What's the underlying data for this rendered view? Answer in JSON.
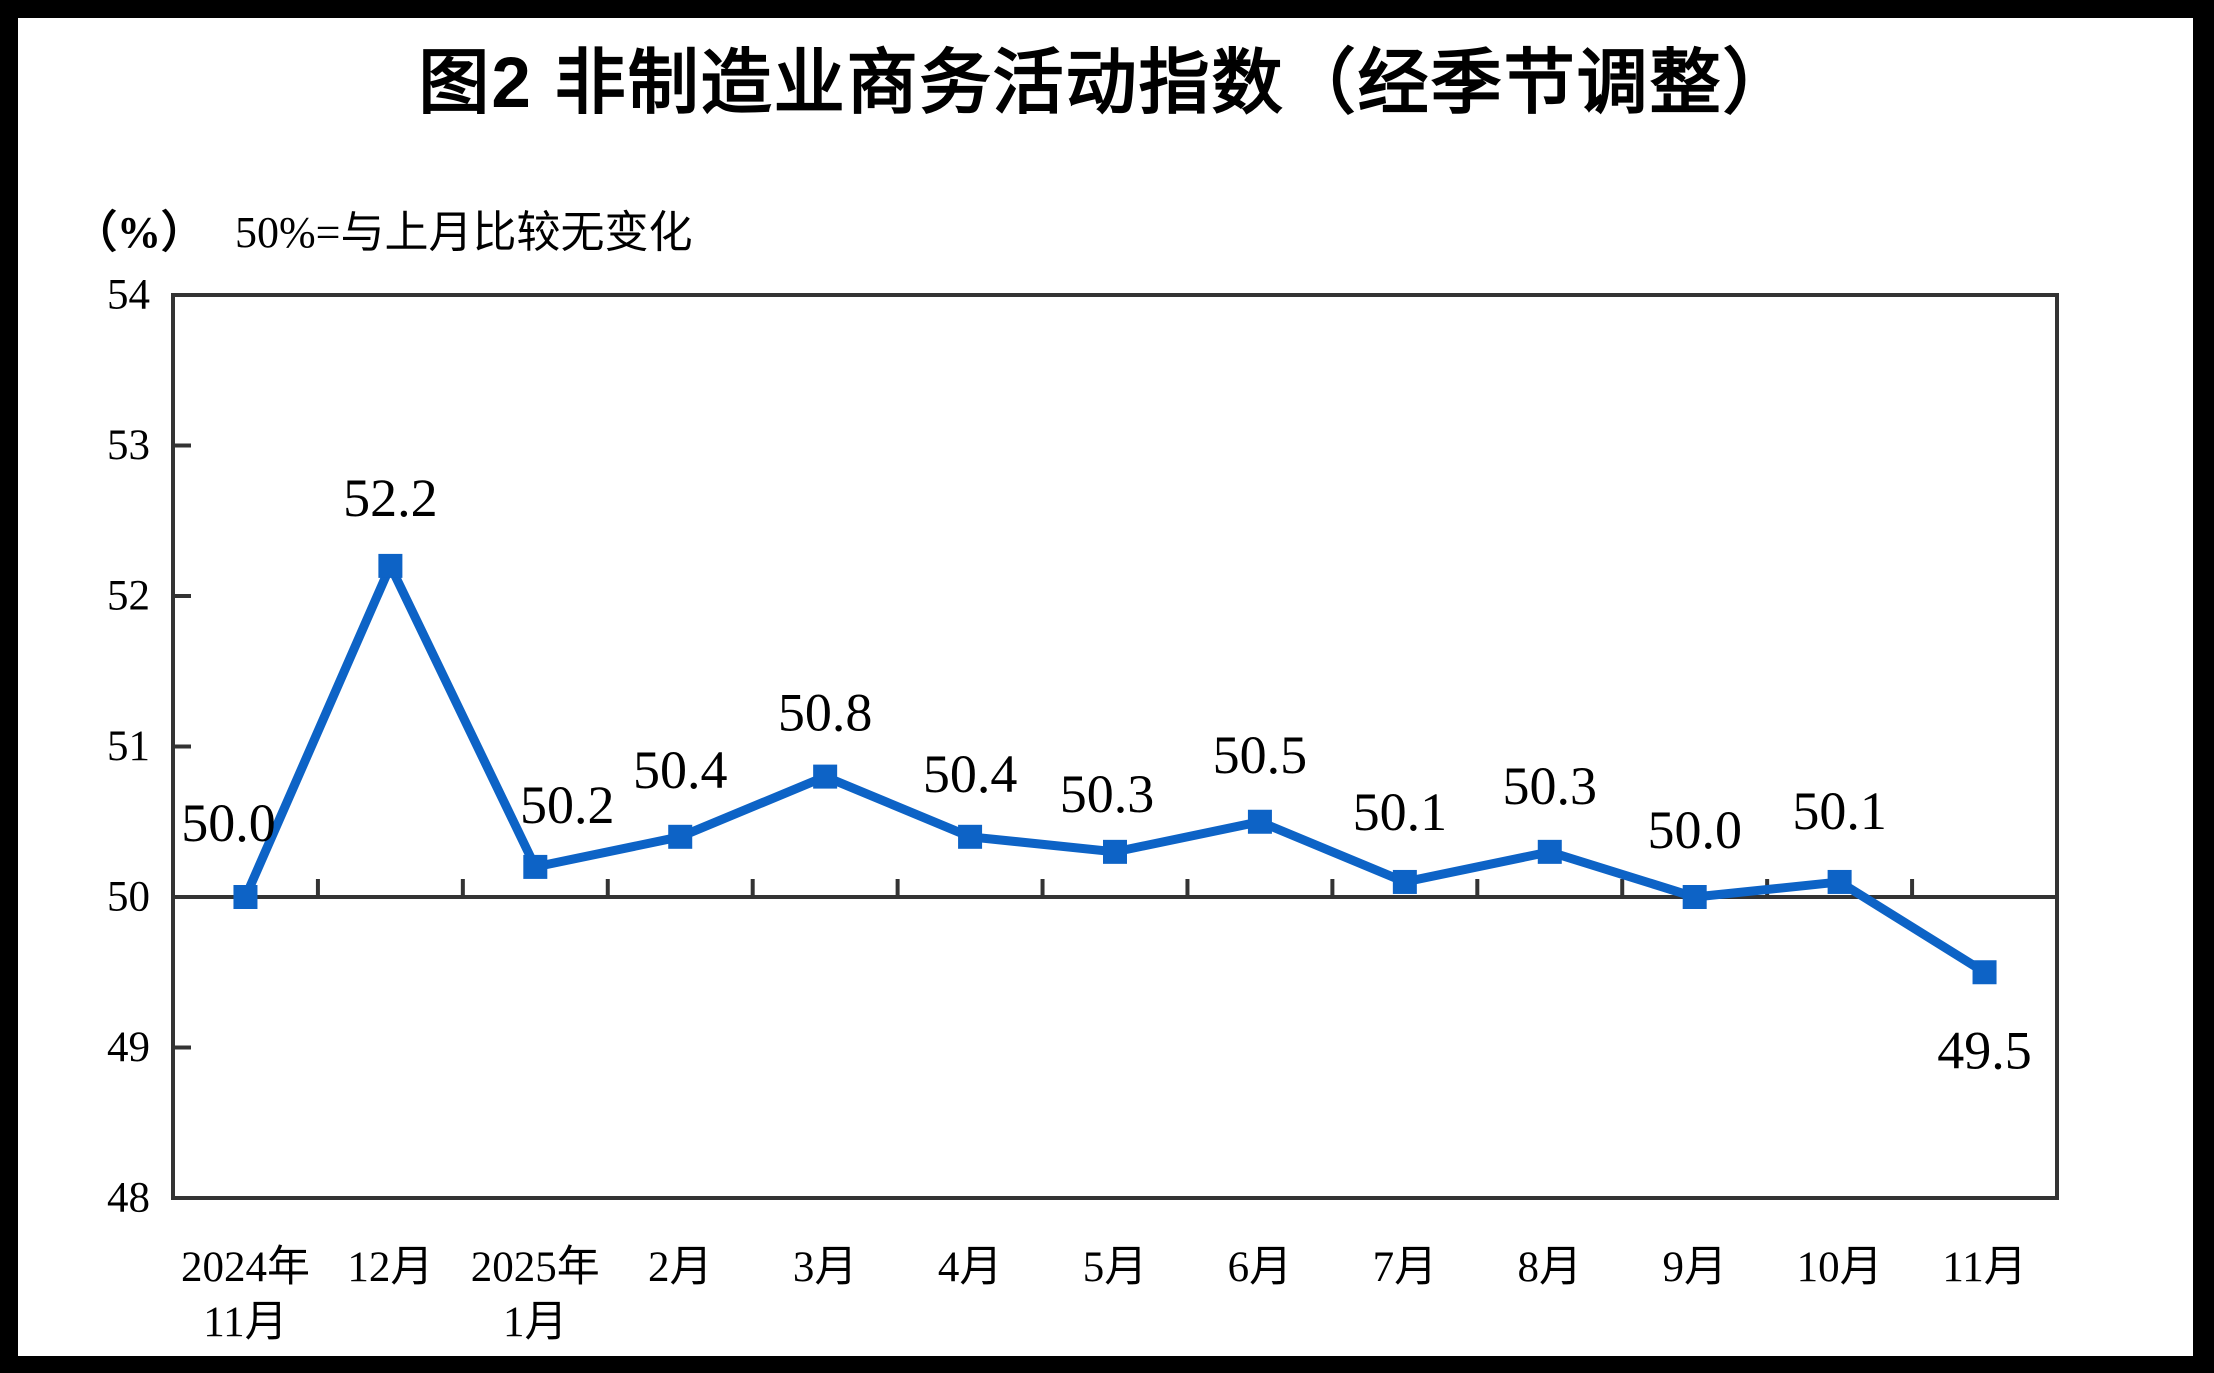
{
  "chart_data": {
    "type": "line",
    "title": "图2 非制造业商务活动指数（经季节调整）",
    "unit_label": "（%）",
    "note": "50%=与上月比较无变化",
    "categories": [
      [
        "2024年",
        "11月"
      ],
      [
        "12月"
      ],
      [
        "2025年",
        "1月"
      ],
      [
        "2月"
      ],
      [
        "3月"
      ],
      [
        "4月"
      ],
      [
        "5月"
      ],
      [
        "6月"
      ],
      [
        "7月"
      ],
      [
        "8月"
      ],
      [
        "9月"
      ],
      [
        "10月"
      ],
      [
        "11月"
      ]
    ],
    "values": [
      50.0,
      52.2,
      50.2,
      50.4,
      50.8,
      50.4,
      50.3,
      50.5,
      50.1,
      50.3,
      50.0,
      50.1,
      49.5
    ],
    "data_labels": [
      "50.0",
      "52.2",
      "50.2",
      "50.4",
      "50.8",
      "50.4",
      "50.3",
      "50.5",
      "50.1",
      "50.3",
      "50.0",
      "50.1",
      "49.5"
    ],
    "y_ticks": [
      54,
      53,
      52,
      51,
      50,
      49,
      48
    ],
    "ylim": [
      48,
      54
    ],
    "baseline_value": 50,
    "line_color": "#0d63c6",
    "axis_color": "#333333",
    "marker": "square",
    "grid": "off",
    "legend": "none"
  }
}
